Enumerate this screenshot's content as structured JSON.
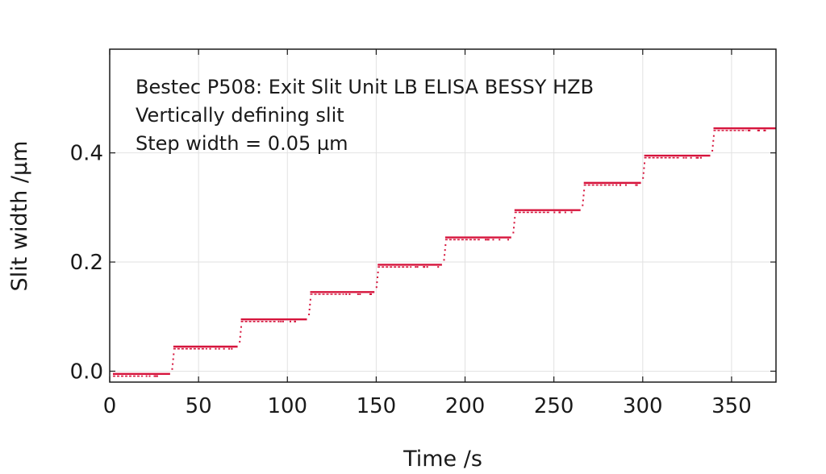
{
  "chart_data": {
    "type": "scatter",
    "title": "",
    "xlabel": "Time /s",
    "ylabel": "Slit width /µm",
    "xlim": [
      0,
      375
    ],
    "ylim": [
      -0.02,
      0.59
    ],
    "xticks": [
      0,
      50,
      100,
      150,
      200,
      250,
      300,
      350
    ],
    "xtick_labels": [
      "0",
      "50",
      "100",
      "150",
      "200",
      "250",
      "300",
      "350"
    ],
    "yticks": [
      0.0,
      0.2,
      0.4
    ],
    "ytick_labels": [
      "0.0",
      "0.2",
      "0.4"
    ],
    "grid": true,
    "annotations": [
      "Bestec P508: Exit Slit Unit LB ELISA BESSY HZB",
      "Vertically defining slit",
      "Step width = 0.05 µm"
    ],
    "series": [
      {
        "color": "#d6143c",
        "steps": [
          {
            "t_start": 0,
            "t_end": 34,
            "value": -0.005
          },
          {
            "t_start": 34,
            "t_end": 72,
            "value": 0.045
          },
          {
            "t_start": 72,
            "t_end": 111,
            "value": 0.095
          },
          {
            "t_start": 111,
            "t_end": 149,
            "value": 0.145
          },
          {
            "t_start": 149,
            "t_end": 187,
            "value": 0.195
          },
          {
            "t_start": 187,
            "t_end": 226,
            "value": 0.245
          },
          {
            "t_start": 226,
            "t_end": 265,
            "value": 0.295
          },
          {
            "t_start": 265,
            "t_end": 299,
            "value": 0.345
          },
          {
            "t_start": 299,
            "t_end": 338,
            "value": 0.395
          },
          {
            "t_start": 338,
            "t_end": 375,
            "value": 0.445
          }
        ]
      }
    ]
  }
}
